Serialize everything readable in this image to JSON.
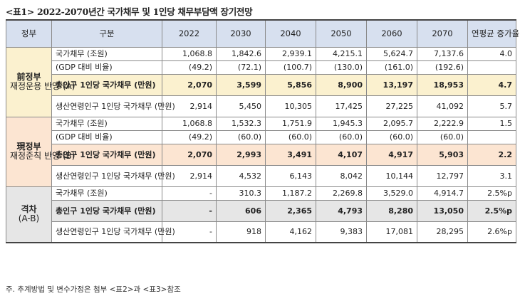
{
  "title": "<표1> 2022-2070년간 국가채무 및 1인당 채무부담액 장기전망",
  "header": [
    "정부",
    "구분",
    "2022",
    "2030",
    "2040",
    "2050",
    "2060",
    "2070",
    "연평균 증가율"
  ],
  "groups": [
    {
      "name": "前정부",
      "sub": "재정운용 반영 (A)",
      "rows": [
        {
          "label": "국가채무 (조원)",
          "values": [
            "1,068.8",
            "1,842.6",
            "2,939.1",
            "4,215.1",
            "5,624.7",
            "7,137.6",
            "4.0"
          ],
          "highlight": false
        },
        {
          "label": "(GDP 대비 비율)",
          "values": [
            "(49.2)",
            "(72.1)",
            "(100.7)",
            "(130.0)",
            "(161.0)",
            "(192.6)",
            ""
          ],
          "highlight": false
        },
        {
          "label": "총인구 1인당 국가채무 (만원)",
          "values": [
            "2,070",
            "3,599",
            "5,856",
            "8,900",
            "13,197",
            "18,953",
            "4.7"
          ],
          "highlight": true
        },
        {
          "label": "생산연령인구 1인당 국가채무 (만원)",
          "values": [
            "2,914",
            "5,450",
            "10,305",
            "17,425",
            "27,225",
            "41,092",
            "5.7"
          ],
          "highlight": false
        }
      ]
    },
    {
      "name": "現정부",
      "sub": "재정준칙 반영 (B)",
      "rows": [
        {
          "label": "국가채무 (조원)",
          "values": [
            "1,068.8",
            "1,532.3",
            "1,751.9",
            "1,945.3",
            "2,095.7",
            "2,222.9",
            "1.5"
          ],
          "highlight": false
        },
        {
          "label": "(GDP 대비 비율)",
          "values": [
            "(49.2)",
            "(60.0)",
            "(60.0)",
            "(60.0)",
            "(60.0)",
            "(60.0)",
            ""
          ],
          "highlight": false
        },
        {
          "label": "총인구 1인당 국가채무 (만원)",
          "values": [
            "2,070",
            "2,993",
            "3,491",
            "4,107",
            "4,917",
            "5,903",
            "2.2"
          ],
          "highlight": true
        },
        {
          "label": "생산연령인구 1인당 국가채무 (만원)",
          "values": [
            "2,914",
            "4,532",
            "6,143",
            "8,042",
            "10,144",
            "12,797",
            "3.1"
          ],
          "highlight": false
        }
      ]
    },
    {
      "name": "격차",
      "sub": "(A-B)",
      "rows": [
        {
          "label": "국가채무 (조원)",
          "values": [
            "-",
            "310.3",
            "1,187.2",
            "2,269.8",
            "3,529.0",
            "4,914.7",
            "2.5%p"
          ],
          "highlight": false
        },
        {
          "label": "총인구 1인당 국가채무 (만원)",
          "values": [
            "-",
            "606",
            "2,365",
            "4,793",
            "8,280",
            "13,050",
            "2.5%p"
          ],
          "highlight": true
        },
        {
          "label": "생산연령인구 1인당 국가채무 (만원)",
          "values": [
            "-",
            "918",
            "4,162",
            "9,383",
            "17,081",
            "28,295",
            "2.6%p"
          ],
          "highlight": false
        }
      ]
    }
  ],
  "note": "주. 추계방법 및 변수가정은 첨부 <표2>과 <표3>참조"
}
